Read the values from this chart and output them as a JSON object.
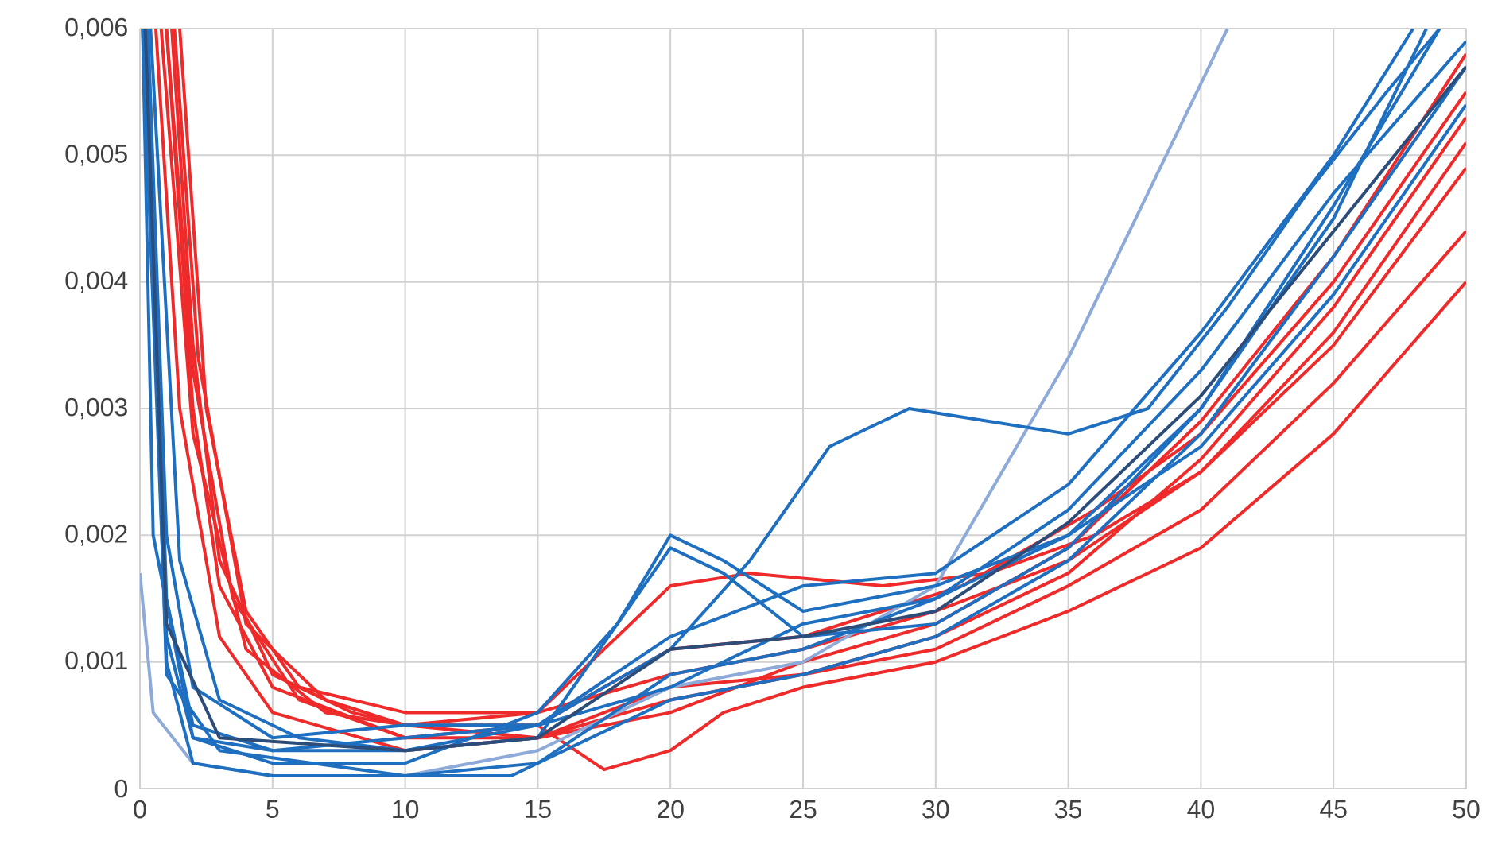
{
  "chart_data": {
    "type": "line",
    "xlim": [
      0,
      50
    ],
    "ylim": [
      0,
      0.006
    ],
    "xticks": [
      0,
      5,
      10,
      15,
      20,
      25,
      30,
      35,
      40,
      45,
      50
    ],
    "yticks": [
      0,
      {
        "value": 0.001,
        "label": "0,001"
      },
      {
        "value": 0.002,
        "label": "0,002"
      },
      {
        "value": 0.003,
        "label": "0,003"
      },
      {
        "value": 0.004,
        "label": "0,004"
      },
      {
        "value": 0.005,
        "label": "0,005"
      },
      {
        "value": 0.006,
        "label": "0,006"
      }
    ],
    "grid": true,
    "marker": "none",
    "line_style": "solid",
    "series": [
      {
        "color": "#ee2a2a",
        "x": [
          1.2,
          2,
          3,
          5,
          8,
          10,
          15,
          17.5,
          20,
          22,
          25,
          30,
          35,
          40,
          45,
          50
        ],
        "values": [
          0.006,
          0.0035,
          0.0018,
          0.0009,
          0.0006,
          0.0005,
          0.0005,
          0.00015,
          0.0003,
          0.0006,
          0.0008,
          0.001,
          0.0014,
          0.0019,
          0.0028,
          0.004
        ]
      },
      {
        "color": "#ee2a2a",
        "x": [
          1,
          2,
          3,
          5,
          10,
          15,
          20,
          25,
          30,
          35,
          40,
          45,
          50
        ],
        "values": [
          0.006,
          0.003,
          0.0016,
          0.0008,
          0.0004,
          0.0004,
          0.0007,
          0.0009,
          0.0011,
          0.0016,
          0.0022,
          0.0032,
          0.0044
        ]
      },
      {
        "color": "#ee2a2a",
        "x": [
          0.8,
          2,
          4,
          7,
          10,
          15,
          20,
          23,
          28,
          32,
          36,
          40,
          45,
          50
        ],
        "values": [
          0.006,
          0.0028,
          0.0011,
          0.0006,
          0.0005,
          0.0006,
          0.0016,
          0.0017,
          0.0016,
          0.0017,
          0.002,
          0.0025,
          0.0035,
          0.0049
        ]
      },
      {
        "color": "#ee2a2a",
        "x": [
          1.5,
          2.5,
          4,
          6,
          10,
          15,
          20,
          25,
          30,
          35,
          40,
          45,
          50
        ],
        "values": [
          0.006,
          0.003,
          0.0014,
          0.0008,
          0.0006,
          0.0006,
          0.0009,
          0.0011,
          0.0014,
          0.0018,
          0.0025,
          0.0036,
          0.0051
        ]
      },
      {
        "color": "#ee2a2a",
        "x": [
          0.6,
          1.5,
          3,
          5,
          10,
          15,
          20,
          25,
          30,
          35,
          40,
          45,
          50
        ],
        "values": [
          0.006,
          0.003,
          0.0012,
          0.0006,
          0.0003,
          0.0004,
          0.0008,
          0.0009,
          0.0012,
          0.0017,
          0.0026,
          0.0038,
          0.0053
        ]
      },
      {
        "color": "#ee2a2a",
        "x": [
          1,
          2,
          3.5,
          6,
          10,
          15,
          20,
          25,
          31,
          36,
          40,
          45,
          50
        ],
        "values": [
          0.006,
          0.0033,
          0.0015,
          0.0007,
          0.0004,
          0.0005,
          0.0011,
          0.0012,
          0.0016,
          0.0022,
          0.0028,
          0.004,
          0.0055
        ]
      },
      {
        "color": "#ee2a2a",
        "x": [
          1.3,
          2.2,
          4,
          7,
          10,
          15,
          20,
          25,
          30,
          35,
          40,
          45,
          50
        ],
        "values": [
          0.006,
          0.0034,
          0.0013,
          0.0007,
          0.0005,
          0.0004,
          0.0006,
          0.001,
          0.0013,
          0.0019,
          0.0029,
          0.0042,
          0.0058
        ]
      },
      {
        "color": "#8eaad8",
        "x": [
          0,
          0.5,
          2,
          5,
          10,
          15,
          20,
          25,
          30,
          35,
          38,
          41
        ],
        "values": [
          0.0017,
          0.0006,
          0.0002,
          0.0001,
          0.0001,
          0.0003,
          0.0008,
          0.001,
          0.0016,
          0.0034,
          0.0047,
          0.006
        ]
      },
      {
        "color": "#1f6fc0",
        "x": [
          0.3,
          1,
          2,
          5,
          10,
          15,
          20,
          23,
          26,
          29,
          32,
          35,
          38,
          41,
          44,
          47,
          49
        ],
        "values": [
          0.006,
          0.0015,
          0.0005,
          0.0003,
          0.0003,
          0.0005,
          0.0011,
          0.0018,
          0.0027,
          0.003,
          0.0029,
          0.0028,
          0.003,
          0.0038,
          0.0047,
          0.0055,
          0.006
        ]
      },
      {
        "color": "#1f6fc0",
        "x": [
          0.2,
          1,
          2,
          5,
          10,
          15,
          18,
          20,
          22,
          25,
          30,
          35,
          40,
          45,
          48.5
        ],
        "values": [
          0.006,
          0.0012,
          0.0004,
          0.0002,
          0.0002,
          0.0006,
          0.0013,
          0.002,
          0.0018,
          0.0014,
          0.0016,
          0.002,
          0.003,
          0.0045,
          0.006
        ]
      },
      {
        "color": "#1f6fc0",
        "x": [
          0.1,
          1,
          2,
          5,
          10,
          15,
          20,
          25,
          30,
          35,
          40,
          45,
          50
        ],
        "values": [
          0.006,
          0.001,
          0.0002,
          0.0001,
          0.0001,
          0.0002,
          0.0009,
          0.0011,
          0.0015,
          0.0022,
          0.0033,
          0.0047,
          0.0059
        ]
      },
      {
        "color": "#1f6fc0",
        "x": [
          0.3,
          1,
          2,
          5,
          10,
          15,
          20,
          25,
          30,
          35,
          40,
          45,
          48
        ],
        "values": [
          0.006,
          0.002,
          0.0008,
          0.0004,
          0.0005,
          0.0005,
          0.0012,
          0.0016,
          0.0017,
          0.0024,
          0.0036,
          0.005,
          0.006
        ]
      },
      {
        "color": "#1f6fc0",
        "x": [
          0.2,
          1,
          3,
          10,
          14,
          20,
          25,
          30,
          35,
          40,
          45,
          50
        ],
        "values": [
          0.006,
          0.0009,
          0.0003,
          0.0001,
          0.0001,
          0.0007,
          0.0009,
          0.0012,
          0.0018,
          0.0028,
          0.0042,
          0.0057
        ]
      },
      {
        "color": "#1f6fc0",
        "x": [
          0.4,
          1.5,
          3,
          6,
          10,
          15,
          20,
          22,
          25,
          30,
          35,
          40,
          45,
          49
        ],
        "values": [
          0.006,
          0.0018,
          0.0007,
          0.0004,
          0.0003,
          0.0004,
          0.0019,
          0.0017,
          0.0012,
          0.0013,
          0.0019,
          0.003,
          0.0046,
          0.006
        ]
      },
      {
        "color": "#1f6fc0",
        "x": [
          0.1,
          0.5,
          2,
          5,
          10,
          15,
          20,
          25,
          30,
          35,
          40,
          45,
          50
        ],
        "values": [
          0.006,
          0.002,
          0.0004,
          0.0003,
          0.0004,
          0.0005,
          0.0008,
          0.0013,
          0.0015,
          0.002,
          0.0027,
          0.0039,
          0.0054
        ]
      },
      {
        "color": "#2c4d7a",
        "x": [
          0.2,
          1,
          3,
          10,
          15,
          20,
          25,
          30,
          35,
          40,
          45,
          50
        ],
        "values": [
          0.006,
          0.0013,
          0.0004,
          0.0003,
          0.0004,
          0.0011,
          0.0012,
          0.0014,
          0.0021,
          0.0031,
          0.0044,
          0.0057
        ]
      }
    ]
  }
}
